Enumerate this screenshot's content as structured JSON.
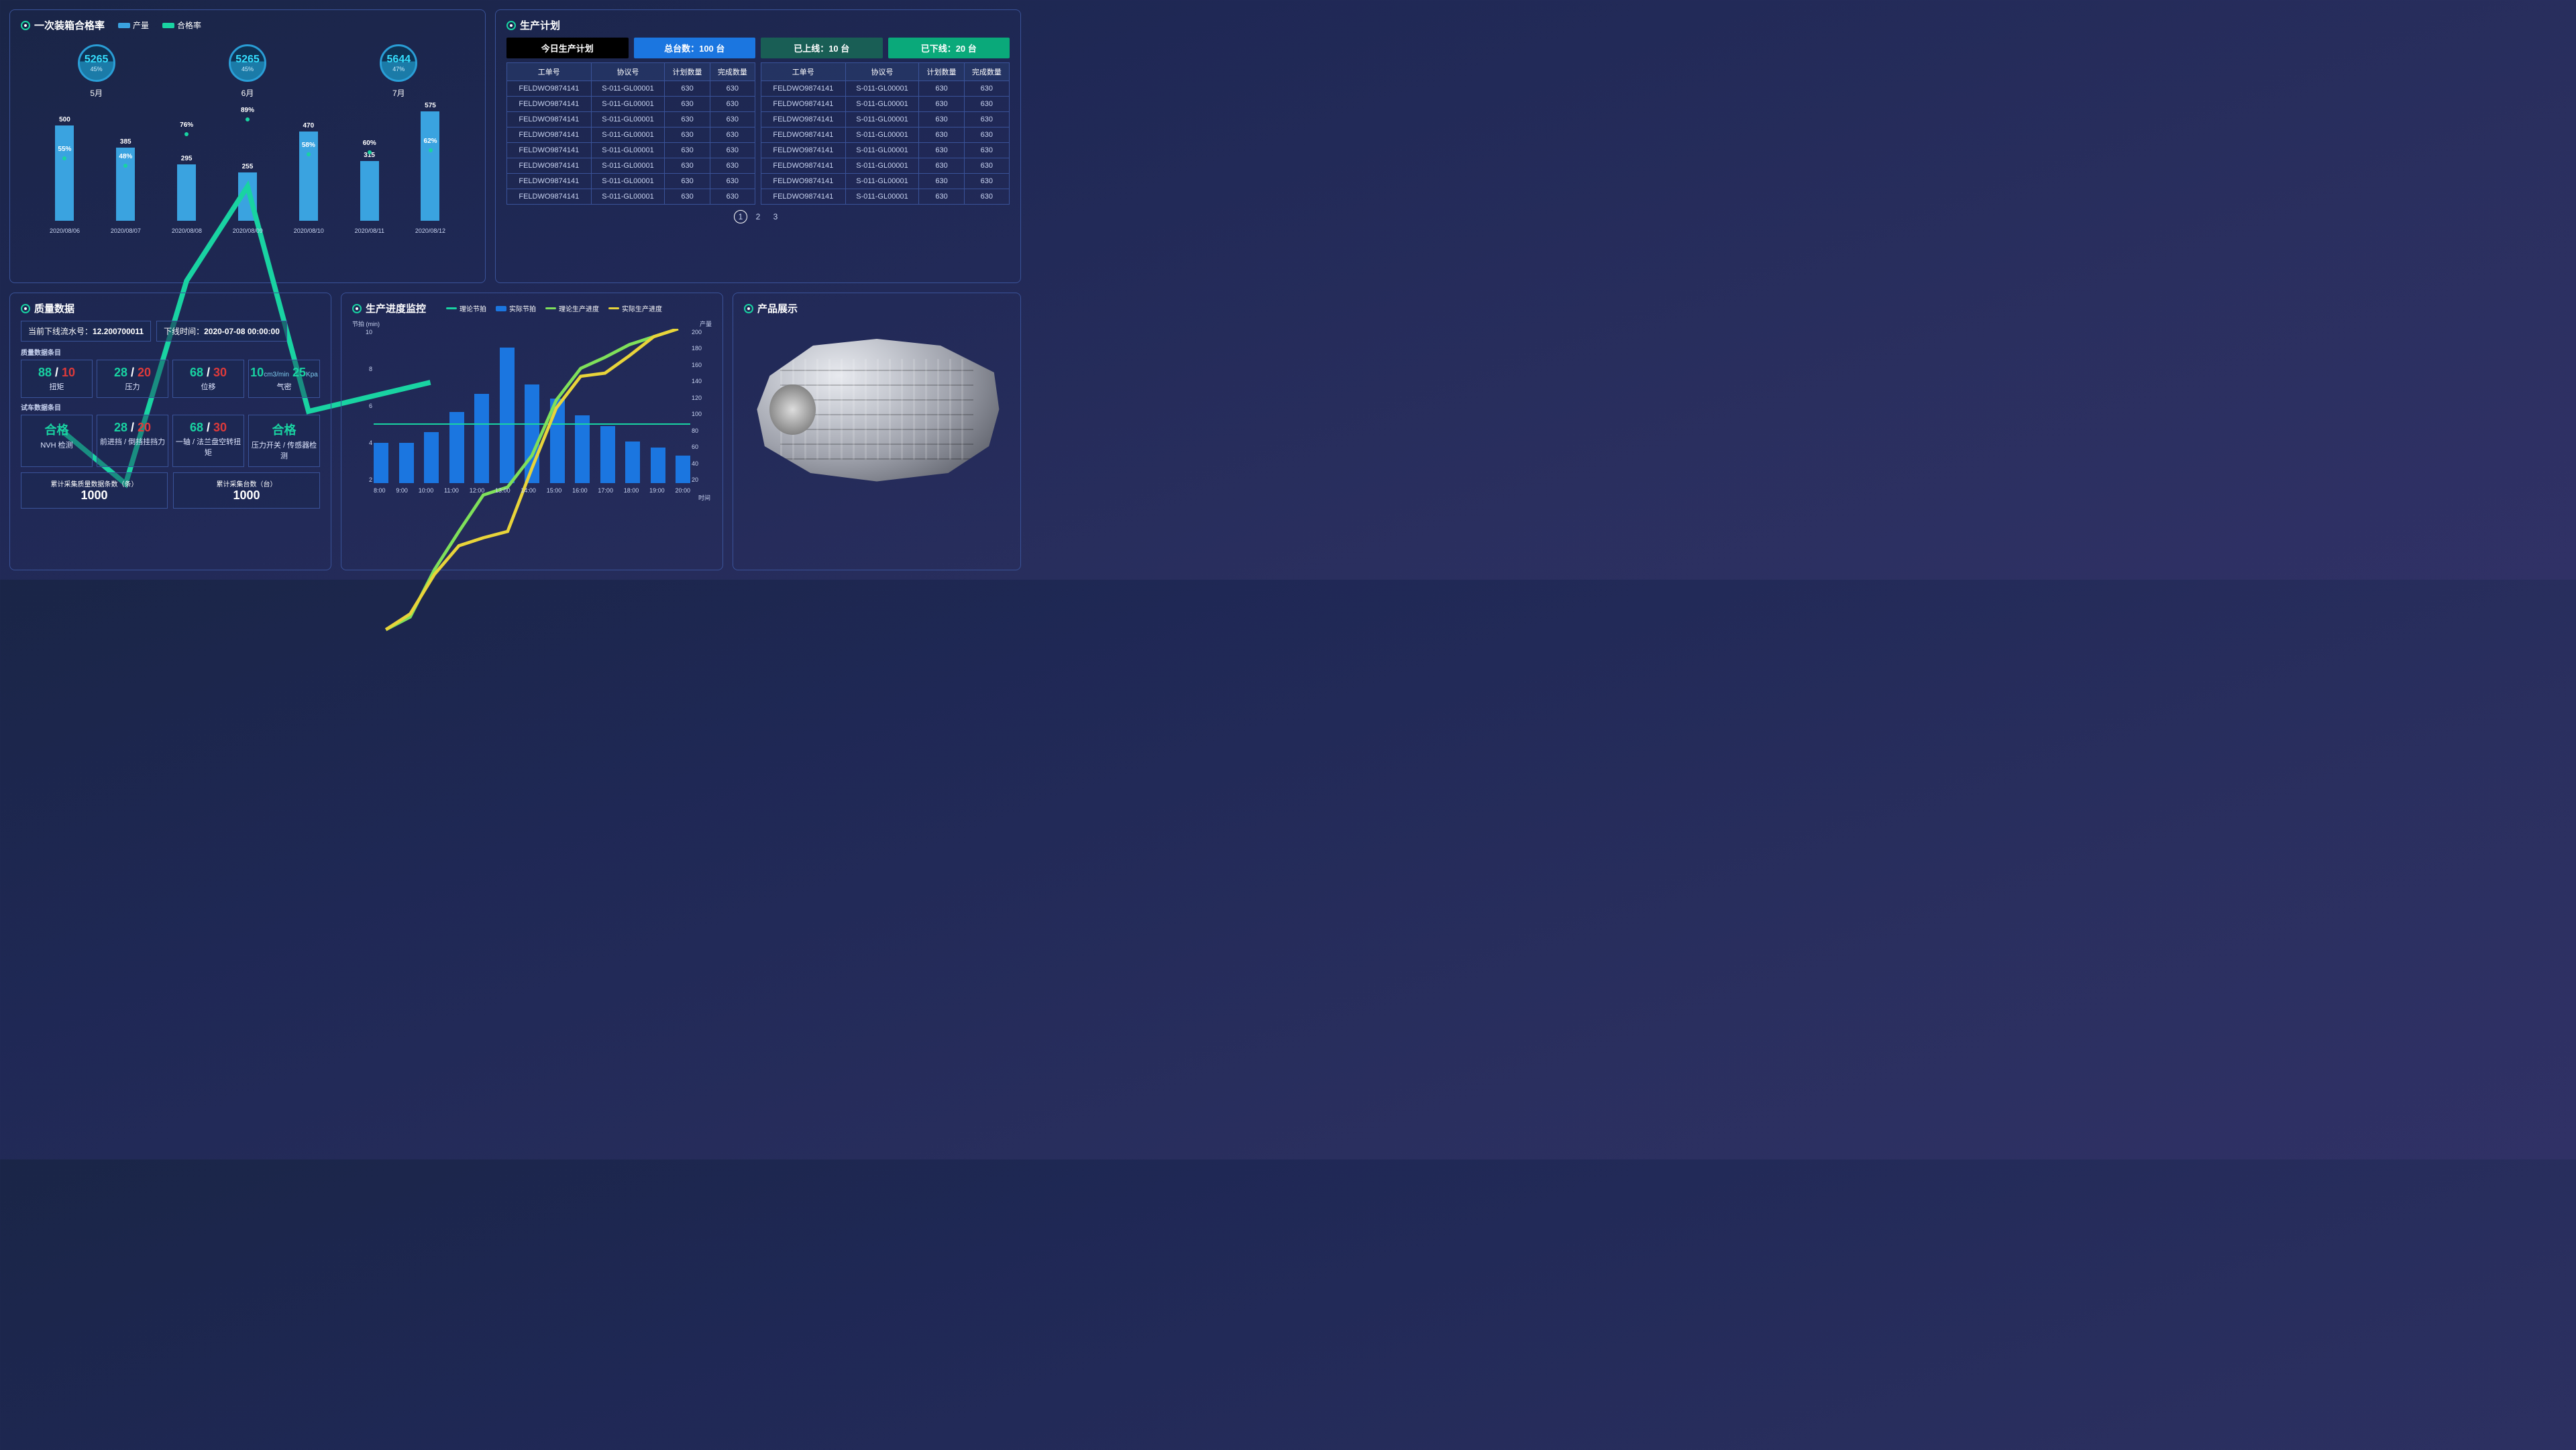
{
  "passrate": {
    "title": "一次装箱合格率",
    "legend": {
      "bar": "产量",
      "line": "合格率",
      "bar_color": "#3aa3e0",
      "line_color": "#19d3a2"
    },
    "circles": [
      {
        "value": "5265",
        "pct": "45%",
        "month": "5月"
      },
      {
        "value": "5265",
        "pct": "45%",
        "month": "6月"
      },
      {
        "value": "5644",
        "pct": "47%",
        "month": "7月"
      }
    ],
    "chart": {
      "x": [
        "2020/08/06",
        "2020/08/07",
        "2020/08/08",
        "2020/08/09",
        "2020/08/10",
        "2020/08/11",
        "2020/08/12"
      ],
      "bars": [
        500,
        385,
        295,
        255,
        470,
        315,
        575
      ],
      "bar_max": 600,
      "line_pct": [
        55,
        48,
        76,
        89,
        58,
        60,
        62
      ],
      "bar_color": "#3aa3e0",
      "line_color": "#19d3a2"
    }
  },
  "plan": {
    "title": "生产计划",
    "pills": {
      "today": "今日生产计划",
      "total": "总台数：100 台",
      "online": "已上线：10 台",
      "offline": "已下线：20 台"
    },
    "columns": [
      "工单号",
      "协议号",
      "计划数量",
      "完成数量"
    ],
    "row": {
      "c1": "FELDWO9874141",
      "c2": "S-011-GL00001",
      "c3": "630",
      "c4": "630"
    },
    "row_count_each": 8,
    "pager": {
      "pages": [
        "1",
        "2",
        "3"
      ],
      "current": "1"
    }
  },
  "quality": {
    "title": "质量数据",
    "serial_label": "当前下线流水号：",
    "serial_value": "12.200700011",
    "time_label": "下线时间：",
    "time_value": "2020-07-08 00:00:00",
    "group1_title": "质量数据条目",
    "group2_title": "试车数据条目",
    "tiles1": [
      {
        "g": "88",
        "sep": " / ",
        "r": "10",
        "lbl": "扭矩"
      },
      {
        "g": "28",
        "sep": " / ",
        "r": "20",
        "lbl": "压力"
      },
      {
        "g": "68",
        "sep": " / ",
        "r": "30",
        "lbl": "位移"
      },
      {
        "airtight_a": "10",
        "airtight_au": "cm3/min",
        "airtight_b": "25",
        "airtight_bu": "Kpa",
        "lbl": "气密"
      }
    ],
    "tiles2": [
      {
        "pass": "合格",
        "lbl": "NVH 检测"
      },
      {
        "g": "28",
        "sep": " / ",
        "r": "20",
        "lbl": "前进挡 / 倒挡挂挡力"
      },
      {
        "g": "68",
        "sep": " / ",
        "r": "30",
        "lbl": "一轴 / 法兰盘空转扭矩"
      },
      {
        "pass": "合格",
        "lbl": "压力开关 / 传感器检测"
      }
    ],
    "sum1_lbl": "累计采集质量数据条数（条）",
    "sum1_val": "1000",
    "sum2_lbl": "累计采集台数（台）",
    "sum2_val": "1000"
  },
  "progress": {
    "title": "生产进度监控",
    "legend": {
      "l1": "理论节拍",
      "l1_color": "#19d3a2",
      "l2": "实际节拍",
      "l2_color": "#1b76e0",
      "l3": "理论生产进度",
      "l3_color": "#7fe05a",
      "l4": "实际生产进度",
      "l4_color": "#e8d43a"
    },
    "y_left_title": "节拍 (min)",
    "y_left_ticks": [
      "10",
      "8",
      "6",
      "4",
      "2"
    ],
    "y_right_title": "产量",
    "y_right_ticks": [
      "200",
      "180",
      "160",
      "140",
      "120",
      "100",
      "80",
      "60",
      "40",
      "20"
    ],
    "x_title": "时间",
    "x": [
      "8:00",
      "9:00",
      "10:00",
      "11:00",
      "12:00",
      "13:00",
      "14:00",
      "15:00",
      "16:00",
      "17:00",
      "18:00",
      "19:00",
      "20:00"
    ],
    "bars": [
      2.6,
      2.6,
      3.3,
      4.6,
      5.8,
      8.8,
      6.4,
      5.5,
      4.4,
      3.7,
      2.7,
      2.3,
      1.8
    ],
    "bar_max": 10,
    "hline_at": 3.8,
    "green_y": [
      10,
      18,
      48,
      72,
      95,
      100,
      120,
      155,
      175,
      182,
      190,
      195,
      200
    ],
    "yellow_y": [
      10,
      20,
      45,
      63,
      68,
      72,
      112,
      150,
      170,
      172,
      183,
      195,
      200
    ],
    "right_max": 200
  },
  "product": {
    "title": "产品展示"
  }
}
